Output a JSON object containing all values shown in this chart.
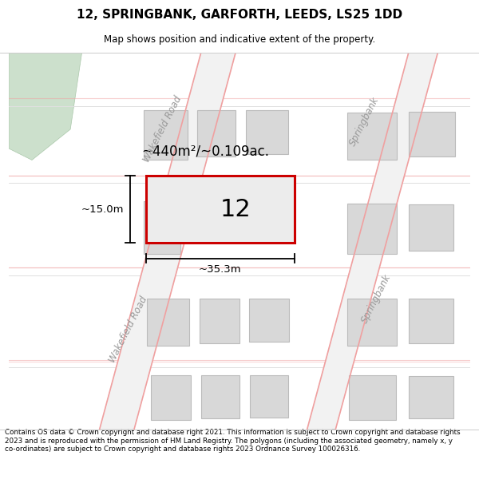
{
  "title": "12, SPRINGBANK, GARFORTH, LEEDS, LS25 1DD",
  "subtitle": "Map shows position and indicative extent of the property.",
  "footer": "Contains OS data © Crown copyright and database right 2021. This information is subject to Crown copyright and database rights 2023 and is reproduced with the permission of HM Land Registry. The polygons (including the associated geometry, namely x, y co-ordinates) are subject to Crown copyright and database rights 2023 Ordnance Survey 100026316.",
  "area_label": "~440m²/~0.109ac.",
  "width_label": "~35.3m",
  "height_label": "~15.0m",
  "number_label": "12",
  "plot_outline": "#cc0000",
  "green_fill": "#d4e8d4",
  "road_red_line": "#f0a0a0",
  "building_fill": "#d8d8d8",
  "building_stroke": "#bbbbbb",
  "wakefield_road_label": "Wakefield Road",
  "springbank_label": "Springbank"
}
